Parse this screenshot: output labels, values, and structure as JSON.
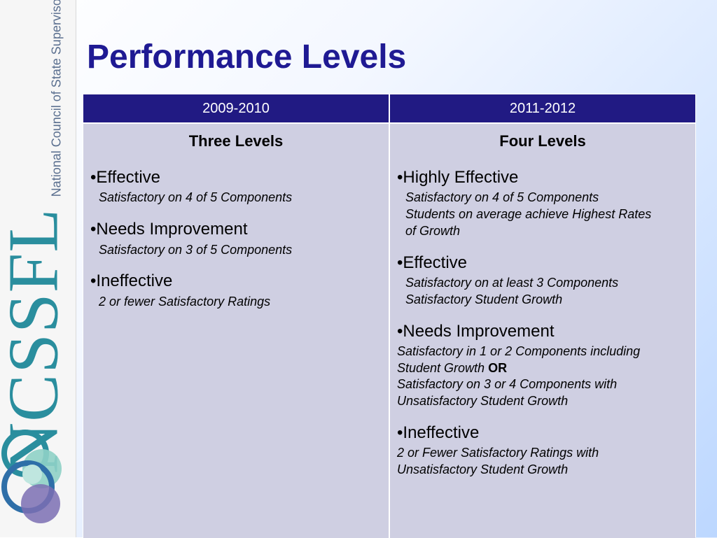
{
  "brand": {
    "acronym": "NCSSFL",
    "full_name": "National Council of State Supervisors for Languages"
  },
  "slide": {
    "title": "Performance Levels"
  },
  "table": {
    "headers": [
      "2009-2010",
      "2011-2012"
    ],
    "col1": {
      "heading": "Three Levels",
      "levels": [
        {
          "name": "•Effective",
          "details": [
            "Satisfactory on 4 of 5 Components"
          ]
        },
        {
          "name": "•Needs Improvement",
          "details": [
            "Satisfactory on 3 of 5 Components"
          ]
        },
        {
          "name": "•Ineffective",
          "details": [
            "2 or fewer Satisfactory Ratings"
          ]
        }
      ]
    },
    "col2": {
      "heading": "Four Levels",
      "levels": [
        {
          "name": "•Highly Effective",
          "details": [
            "Satisfactory on 4 of 5 Components",
            "Students on average achieve Highest Rates",
            "of Growth"
          ]
        },
        {
          "name": "•Effective",
          "details": [
            "Satisfactory on at least 3 Components",
            "Satisfactory Student Growth"
          ]
        },
        {
          "name": "•Needs Improvement",
          "details": [
            "Satisfactory in 1 or 2 Components including",
            "Student Growth",
            "OR",
            "Satisfactory on 3 or 4 Components with",
            "Unsatisfactory Student Growth"
          ]
        },
        {
          "name": "•Ineffective",
          "details": [
            "2 or Fewer Satisfactory Ratings with",
            "Unsatisfactory Student Growth"
          ]
        }
      ]
    }
  },
  "colors": {
    "title": "#1f1a93",
    "header_bg": "#211a83",
    "body_bg": "#cfcfe2",
    "brand_teal": "#2a8e9e",
    "brand_text": "#5a6f8f"
  }
}
